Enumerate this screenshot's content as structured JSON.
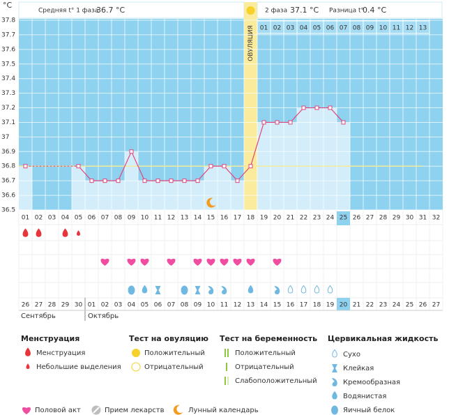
{
  "header": {
    "phase1_label": "Средняя t° 1 фаза",
    "phase1_value": "36.7 °C",
    "phase2_label": "2 фаза",
    "phase2_value": "37.1 °C",
    "diff_label": "Разница t°",
    "diff_value": "0.4 °C"
  },
  "chart_data": {
    "type": "line",
    "y_label": "°C",
    "ylim": [
      36.5,
      37.8
    ],
    "yticks": [
      37.8,
      37.7,
      37.6,
      37.5,
      37.4,
      37.3,
      37.2,
      37.1,
      37,
      36.9,
      36.8,
      36.7,
      36.6,
      36.5
    ],
    "categories": [
      "01",
      "02",
      "03",
      "04",
      "05",
      "06",
      "07",
      "08",
      "09",
      "10",
      "11",
      "12",
      "13",
      "14",
      "15",
      "16",
      "17",
      "18",
      "19",
      "20",
      "21",
      "22",
      "23",
      "24",
      "25",
      "26",
      "27",
      "28",
      "29",
      "30",
      "31",
      "32"
    ],
    "values": [
      36.8,
      null,
      null,
      null,
      36.8,
      36.7,
      36.7,
      36.7,
      36.9,
      36.7,
      36.7,
      36.7,
      36.7,
      36.7,
      36.8,
      36.8,
      36.7,
      36.8,
      37.1,
      37.1,
      37.1,
      37.2,
      37.2,
      37.2,
      37.1,
      null,
      null,
      null,
      null,
      null,
      null,
      null
    ],
    "color": "#e0457b",
    "coverline": 36.8,
    "ovulation_day": "18",
    "ovulation_label": "ОВУЛЯЦИЯ",
    "current_day": "25",
    "moon_day": "15",
    "phase2_days": [
      "01",
      "02",
      "03",
      "04",
      "05",
      "06",
      "07",
      "08",
      "09",
      "10",
      "11",
      "12",
      "13"
    ],
    "menstruation": [
      "heavy",
      "heavy",
      null,
      "heavy",
      "light",
      null,
      null,
      null,
      null,
      null,
      null,
      null,
      null,
      null,
      null,
      null,
      null,
      null,
      null,
      null,
      null,
      null,
      null,
      null,
      null,
      null,
      null,
      null,
      null,
      null,
      null,
      null
    ],
    "intercourse": [
      false,
      false,
      false,
      false,
      false,
      false,
      true,
      false,
      true,
      true,
      false,
      true,
      false,
      true,
      true,
      true,
      true,
      true,
      false,
      true,
      false,
      false,
      false,
      false,
      false,
      false,
      false,
      false,
      false,
      false,
      false,
      false
    ],
    "fluid": [
      null,
      null,
      null,
      null,
      null,
      null,
      null,
      null,
      "egg_white",
      "watery",
      "sticky",
      null,
      "egg_white",
      "sticky",
      "creamy",
      "creamy",
      null,
      "watery",
      null,
      "creamy",
      "dry",
      "dry",
      "dry",
      "dry",
      null,
      null,
      null,
      null,
      null,
      null,
      null,
      null
    ],
    "dates": [
      "26",
      "27",
      "28",
      "29",
      "30",
      "01",
      "02",
      "03",
      "04",
      "05",
      "06",
      "07",
      "08",
      "09",
      "10",
      "11",
      "12",
      "13",
      "14",
      "15",
      "16",
      "17",
      "18",
      "19",
      "20",
      "21",
      "22",
      "23",
      "24",
      "25",
      "26",
      "27"
    ],
    "weekend": [
      true,
      true,
      false,
      false,
      false,
      false,
      false,
      true,
      true,
      false,
      false,
      false,
      false,
      false,
      true,
      true,
      false,
      false,
      false,
      false,
      false,
      true,
      true,
      false,
      false,
      false,
      false,
      false,
      true,
      true,
      false,
      false
    ],
    "current_date": "20",
    "months": [
      "Сентябрь",
      "Октябрь"
    ]
  },
  "legend": {
    "menstruation": {
      "title": "Менструация",
      "items": [
        {
          "label": "Менструация",
          "icon": "heavy"
        },
        {
          "label": "Небольшие выделения",
          "icon": "light"
        }
      ]
    },
    "ovulation_test": {
      "title": "Тест на овуляцию",
      "items": [
        {
          "label": "Положительный",
          "icon": "positive"
        },
        {
          "label": "Отрицательный",
          "icon": "negative"
        }
      ]
    },
    "pregnancy_test": {
      "title": "Тест на беременность",
      "items": [
        {
          "label": "Положительный",
          "icon": "positive"
        },
        {
          "label": "Отрицательный",
          "icon": "negative"
        },
        {
          "label": "Слабоположительный",
          "icon": "weak"
        }
      ]
    },
    "fluid": {
      "title": "Цервикальная жидкость",
      "items": [
        {
          "label": "Сухо",
          "icon": "dry"
        },
        {
          "label": "Клейкая",
          "icon": "sticky"
        },
        {
          "label": "Кремообразная",
          "icon": "creamy"
        },
        {
          "label": "Водянистая",
          "icon": "watery"
        },
        {
          "label": "Яичный белок",
          "icon": "egg_white"
        }
      ]
    },
    "other": [
      {
        "label": "Половой акт",
        "icon": "heart"
      },
      {
        "label": "Прием лекарств",
        "icon": "pill"
      },
      {
        "label": "Лунный календарь",
        "icon": "moon"
      }
    ]
  }
}
